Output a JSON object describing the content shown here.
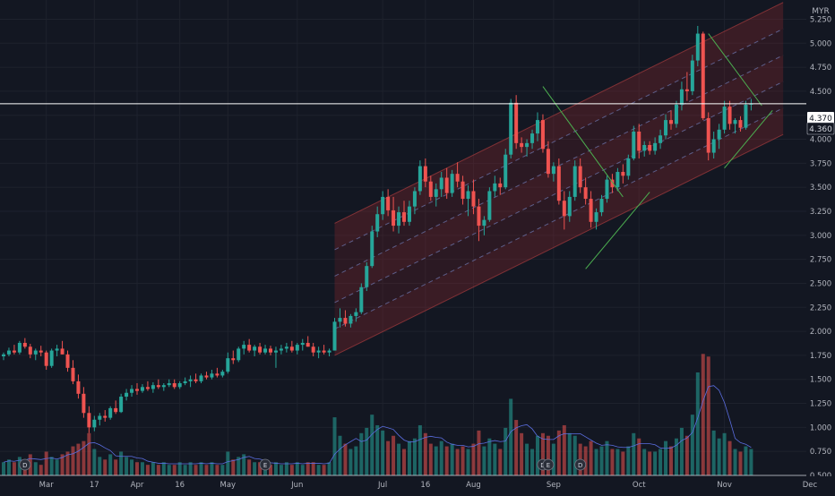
{
  "chart_data": {
    "type": "candlestick",
    "currency": "MYR",
    "last_price_label": "4.370",
    "secondary_price_label": "4.360",
    "horizontal_line_price": 4.37,
    "ylim": [
      0.5,
      5.45
    ],
    "y_ticks": [
      0.5,
      0.75,
      1.0,
      1.25,
      1.5,
      1.75,
      2.0,
      2.25,
      2.5,
      2.75,
      3.0,
      3.25,
      3.5,
      3.75,
      4.0,
      4.25,
      4.5,
      4.75,
      5.0,
      5.25
    ],
    "y_tick_labels": [
      "0.500",
      "0.750",
      "1.000",
      "1.250",
      "1.500",
      "1.750",
      "2.000",
      "2.250",
      "2.500",
      "2.750",
      "3.000",
      "3.250",
      "3.500",
      "3.750",
      "4.000",
      "4.250",
      "4.500",
      "4.750",
      "5.000",
      "5.250"
    ],
    "x_tick_labels": [
      "Mar",
      "17",
      "Apr",
      "16",
      "May",
      "Jun",
      "Jul",
      "16",
      "Aug",
      "Sep",
      "Oct",
      "Nov",
      "Dec"
    ],
    "x_tick_index": [
      8,
      17,
      25,
      33,
      42,
      55,
      71,
      79,
      88,
      103,
      119,
      135,
      151
    ],
    "event_markers": [
      {
        "symbol": "D",
        "index": 4
      },
      {
        "symbol": "E",
        "index": 49
      },
      {
        "symbol": "D",
        "index": 101
      },
      {
        "symbol": "E",
        "index": 102
      },
      {
        "symbol": "D",
        "index": 108
      }
    ],
    "channel": {
      "start_index": 62,
      "end_index": 146,
      "start_center": 2.3,
      "end_center": 4.6,
      "offsets": [
        -0.55,
        -0.275,
        0,
        0.275,
        0.55,
        0.825
      ]
    },
    "trendlines": [
      {
        "x1": 101,
        "y1": 4.55,
        "x2": 116,
        "y2": 3.4
      },
      {
        "x1": 109,
        "y1": 2.65,
        "x2": 121,
        "y2": 3.45
      },
      {
        "x1": 132,
        "y1": 5.1,
        "x2": 142,
        "y2": 4.35
      },
      {
        "x1": 135,
        "y1": 3.7,
        "x2": 144,
        "y2": 4.3
      }
    ],
    "candles": [
      [
        1.74,
        1.78,
        1.7,
        1.76,
        0.5
      ],
      [
        1.76,
        1.83,
        1.74,
        1.8,
        0.6
      ],
      [
        1.8,
        1.86,
        1.76,
        1.78,
        0.5
      ],
      [
        1.78,
        1.9,
        1.76,
        1.88,
        0.7
      ],
      [
        1.88,
        1.93,
        1.82,
        1.84,
        0.6
      ],
      [
        1.84,
        1.87,
        1.72,
        1.76,
        0.8
      ],
      [
        1.76,
        1.82,
        1.7,
        1.8,
        0.5
      ],
      [
        1.8,
        1.85,
        1.74,
        1.78,
        0.4
      ],
      [
        1.78,
        1.8,
        1.6,
        1.64,
        0.9
      ],
      [
        1.64,
        1.82,
        1.62,
        1.8,
        0.7
      ],
      [
        1.8,
        1.86,
        1.74,
        1.82,
        0.6
      ],
      [
        1.82,
        1.9,
        1.76,
        1.76,
        0.8
      ],
      [
        1.76,
        1.8,
        1.58,
        1.62,
        0.9
      ],
      [
        1.62,
        1.7,
        1.45,
        1.48,
        1.1
      ],
      [
        1.48,
        1.55,
        1.3,
        1.35,
        1.2
      ],
      [
        1.35,
        1.42,
        1.1,
        1.15,
        1.3
      ],
      [
        1.15,
        1.22,
        0.94,
        1.0,
        1.6
      ],
      [
        1.0,
        1.12,
        0.96,
        1.08,
        1.0
      ],
      [
        1.08,
        1.15,
        1.02,
        1.12,
        0.7
      ],
      [
        1.12,
        1.18,
        1.06,
        1.1,
        0.6
      ],
      [
        1.1,
        1.22,
        1.08,
        1.2,
        0.8
      ],
      [
        1.2,
        1.28,
        1.14,
        1.16,
        0.6
      ],
      [
        1.16,
        1.35,
        1.15,
        1.32,
        0.9
      ],
      [
        1.32,
        1.4,
        1.28,
        1.36,
        0.7
      ],
      [
        1.36,
        1.44,
        1.32,
        1.4,
        0.6
      ],
      [
        1.4,
        1.46,
        1.34,
        1.38,
        0.5
      ],
      [
        1.38,
        1.45,
        1.36,
        1.42,
        0.5
      ],
      [
        1.42,
        1.48,
        1.38,
        1.4,
        0.4
      ],
      [
        1.4,
        1.47,
        1.36,
        1.44,
        0.5
      ],
      [
        1.44,
        1.5,
        1.4,
        1.42,
        0.4
      ],
      [
        1.42,
        1.46,
        1.38,
        1.44,
        0.5
      ],
      [
        1.44,
        1.5,
        1.42,
        1.46,
        0.4
      ],
      [
        1.46,
        1.5,
        1.4,
        1.42,
        0.4
      ],
      [
        1.42,
        1.48,
        1.4,
        1.46,
        0.5
      ],
      [
        1.46,
        1.52,
        1.44,
        1.48,
        0.4
      ],
      [
        1.48,
        1.54,
        1.42,
        1.5,
        0.5
      ],
      [
        1.5,
        1.56,
        1.46,
        1.48,
        0.4
      ],
      [
        1.48,
        1.56,
        1.46,
        1.54,
        0.5
      ],
      [
        1.54,
        1.58,
        1.5,
        1.52,
        0.4
      ],
      [
        1.52,
        1.6,
        1.5,
        1.56,
        0.5
      ],
      [
        1.56,
        1.62,
        1.52,
        1.54,
        0.4
      ],
      [
        1.54,
        1.6,
        1.52,
        1.58,
        0.4
      ],
      [
        1.58,
        1.78,
        1.56,
        1.72,
        0.9
      ],
      [
        1.72,
        1.8,
        1.66,
        1.7,
        0.6
      ],
      [
        1.7,
        1.84,
        1.68,
        1.82,
        0.7
      ],
      [
        1.82,
        1.9,
        1.76,
        1.86,
        0.8
      ],
      [
        1.86,
        1.92,
        1.78,
        1.8,
        0.6
      ],
      [
        1.8,
        1.86,
        1.74,
        1.84,
        0.5
      ],
      [
        1.84,
        1.88,
        1.76,
        1.78,
        0.5
      ],
      [
        1.78,
        1.86,
        1.76,
        1.82,
        0.4
      ],
      [
        1.82,
        1.85,
        1.75,
        1.78,
        0.4
      ],
      [
        1.78,
        1.84,
        1.62,
        1.8,
        0.5
      ],
      [
        1.8,
        1.86,
        1.76,
        1.82,
        0.4
      ],
      [
        1.82,
        1.88,
        1.78,
        1.84,
        0.5
      ],
      [
        1.84,
        1.9,
        1.78,
        1.8,
        0.4
      ],
      [
        1.8,
        1.88,
        1.76,
        1.86,
        0.5
      ],
      [
        1.86,
        1.92,
        1.8,
        1.88,
        0.4
      ],
      [
        1.88,
        1.95,
        1.84,
        1.84,
        0.5
      ],
      [
        1.84,
        1.88,
        1.74,
        1.78,
        0.5
      ],
      [
        1.78,
        1.84,
        1.72,
        1.8,
        0.4
      ],
      [
        1.8,
        1.86,
        1.76,
        1.78,
        0.4
      ],
      [
        1.78,
        1.82,
        1.74,
        1.8,
        0.5
      ],
      [
        1.8,
        2.14,
        1.8,
        2.1,
        2.2
      ],
      [
        2.1,
        2.24,
        2.04,
        2.14,
        1.5
      ],
      [
        2.14,
        2.22,
        2.05,
        2.08,
        1.2
      ],
      [
        2.08,
        2.18,
        2.04,
        2.16,
        1.0
      ],
      [
        2.16,
        2.24,
        2.1,
        2.2,
        1.1
      ],
      [
        2.2,
        2.5,
        2.18,
        2.46,
        1.6
      ],
      [
        2.46,
        2.72,
        2.42,
        2.68,
        1.8
      ],
      [
        2.68,
        3.1,
        2.66,
        3.04,
        2.3
      ],
      [
        3.04,
        3.3,
        2.98,
        3.22,
        1.9
      ],
      [
        3.22,
        3.46,
        3.16,
        3.4,
        1.7
      ],
      [
        3.4,
        3.48,
        3.2,
        3.26,
        1.3
      ],
      [
        3.26,
        3.4,
        3.04,
        3.1,
        1.5
      ],
      [
        3.1,
        3.3,
        3.02,
        3.24,
        1.2
      ],
      [
        3.24,
        3.36,
        3.1,
        3.14,
        1.0
      ],
      [
        3.14,
        3.36,
        3.1,
        3.3,
        1.3
      ],
      [
        3.3,
        3.5,
        3.22,
        3.46,
        1.4
      ],
      [
        3.46,
        3.78,
        3.42,
        3.72,
        1.9
      ],
      [
        3.72,
        3.8,
        3.5,
        3.56,
        1.6
      ],
      [
        3.56,
        3.62,
        3.36,
        3.4,
        1.2
      ],
      [
        3.4,
        3.54,
        3.3,
        3.48,
        1.1
      ],
      [
        3.48,
        3.66,
        3.4,
        3.6,
        1.3
      ],
      [
        3.6,
        3.7,
        3.38,
        3.44,
        1.1
      ],
      [
        3.44,
        3.68,
        3.4,
        3.64,
        1.2
      ],
      [
        3.64,
        3.76,
        3.5,
        3.56,
        1.0
      ],
      [
        3.56,
        3.62,
        3.32,
        3.38,
        1.1
      ],
      [
        3.38,
        3.52,
        3.2,
        3.46,
        1.0
      ],
      [
        3.46,
        3.58,
        3.22,
        3.3,
        1.2
      ],
      [
        3.3,
        3.38,
        2.94,
        3.1,
        1.7
      ],
      [
        3.1,
        3.2,
        3.0,
        3.16,
        1.1
      ],
      [
        3.16,
        3.5,
        3.14,
        3.46,
        1.4
      ],
      [
        3.46,
        3.62,
        3.4,
        3.54,
        1.2
      ],
      [
        3.54,
        3.6,
        3.42,
        3.5,
        1.0
      ],
      [
        3.5,
        3.9,
        3.48,
        3.84,
        1.8
      ],
      [
        3.84,
        4.42,
        3.8,
        4.38,
        2.9
      ],
      [
        4.38,
        4.46,
        3.9,
        3.96,
        2.1
      ],
      [
        3.96,
        4.02,
        3.86,
        3.92,
        1.6
      ],
      [
        3.92,
        4.0,
        3.82,
        3.96,
        1.2
      ],
      [
        3.96,
        4.1,
        3.9,
        4.06,
        1.0
      ],
      [
        4.06,
        4.28,
        3.98,
        4.2,
        1.5
      ],
      [
        4.2,
        4.26,
        3.86,
        3.9,
        1.6
      ],
      [
        3.9,
        3.98,
        3.6,
        3.64,
        1.5
      ],
      [
        3.64,
        3.76,
        3.56,
        3.72,
        1.2
      ],
      [
        3.72,
        3.8,
        3.32,
        3.36,
        1.7
      ],
      [
        3.36,
        3.46,
        3.06,
        3.2,
        1.9
      ],
      [
        3.2,
        3.46,
        3.14,
        3.4,
        1.6
      ],
      [
        3.4,
        3.78,
        3.36,
        3.72,
        1.5
      ],
      [
        3.72,
        3.8,
        3.44,
        3.5,
        1.2
      ],
      [
        3.5,
        3.6,
        3.32,
        3.38,
        1.1
      ],
      [
        3.38,
        3.46,
        3.08,
        3.14,
        1.3
      ],
      [
        3.14,
        3.28,
        3.06,
        3.24,
        1.0
      ],
      [
        3.24,
        3.42,
        3.2,
        3.38,
        1.1
      ],
      [
        3.38,
        3.62,
        3.34,
        3.58,
        1.3
      ],
      [
        3.58,
        3.64,
        3.44,
        3.5,
        1.0
      ],
      [
        3.5,
        3.7,
        3.46,
        3.66,
        1.0
      ],
      [
        3.66,
        3.74,
        3.54,
        3.62,
        0.9
      ],
      [
        3.62,
        3.84,
        3.58,
        3.8,
        1.1
      ],
      [
        3.8,
        4.14,
        3.78,
        4.08,
        1.6
      ],
      [
        4.08,
        4.16,
        3.8,
        3.88,
        1.4
      ],
      [
        3.88,
        3.98,
        3.82,
        3.94,
        1.0
      ],
      [
        3.94,
        3.98,
        3.84,
        3.88,
        0.9
      ],
      [
        3.88,
        4.02,
        3.84,
        3.96,
        0.9
      ],
      [
        3.96,
        4.1,
        3.9,
        4.04,
        1.0
      ],
      [
        4.04,
        4.26,
        4.0,
        4.2,
        1.3
      ],
      [
        4.2,
        4.3,
        4.1,
        4.16,
        1.1
      ],
      [
        4.16,
        4.4,
        4.12,
        4.36,
        1.4
      ],
      [
        4.36,
        4.6,
        4.3,
        4.52,
        1.8
      ],
      [
        4.52,
        4.7,
        4.4,
        4.5,
        1.5
      ],
      [
        4.5,
        4.88,
        4.46,
        4.82,
        2.3
      ],
      [
        4.82,
        5.18,
        4.76,
        5.1,
        3.9
      ],
      [
        5.1,
        5.12,
        4.2,
        4.22,
        4.6
      ],
      [
        4.22,
        4.28,
        3.78,
        3.86,
        4.5
      ],
      [
        3.86,
        4.08,
        3.8,
        4.0,
        1.7
      ],
      [
        4.0,
        4.16,
        3.9,
        4.1,
        1.4
      ],
      [
        4.1,
        4.4,
        4.06,
        4.34,
        1.6
      ],
      [
        4.34,
        4.4,
        4.1,
        4.16,
        1.3
      ],
      [
        4.16,
        4.22,
        4.06,
        4.2,
        1.0
      ],
      [
        4.2,
        4.24,
        4.08,
        4.12,
        0.9
      ],
      [
        4.12,
        4.4,
        4.1,
        4.36,
        1.1
      ],
      [
        4.36,
        4.42,
        4.3,
        4.37,
        1.0
      ]
    ]
  }
}
